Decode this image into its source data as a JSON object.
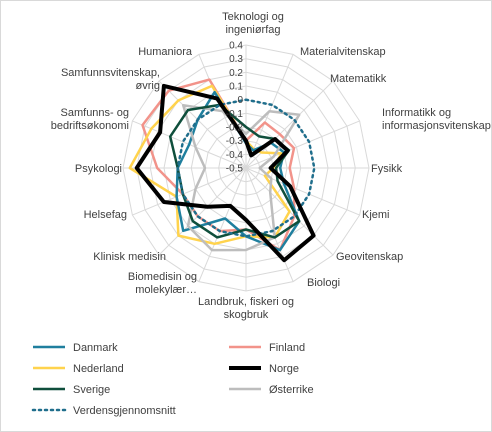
{
  "chart_data": {
    "type": "radar",
    "title": "",
    "categories": [
      "Teknologi og ingeniørfag",
      "Materialvitenskap",
      "Matematikk",
      "Informatikk og informasjonsvitenskap",
      "Fysikk",
      "Kjemi",
      "Geovitenskap",
      "Biologi",
      "Landbruk, fiskeri og skogbruk",
      "Biomedisin og molekylær…",
      "Klinisk medisin",
      "Helsefag",
      "Psykologi",
      "Samfunns- og bedriftsøkonomi",
      "Samfunnsvitenskap, øvrig",
      "Humaniora"
    ],
    "ticks": [
      "-0.5",
      "-0.4",
      "-0.3",
      "-0.2",
      "-0.1",
      "0",
      "0.1",
      "0.2",
      "0.3",
      "0.4"
    ],
    "rlim": [
      -0.5,
      0.4
    ],
    "grid": true,
    "legend_position": "bottom",
    "series": [
      {
        "name": "Danmark",
        "color": "#1f7f9e",
        "width": 2.5,
        "dash": "",
        "values": [
          -0.32,
          -0.36,
          -0.24,
          -0.2,
          -0.25,
          -0.2,
          0.05,
          0.15,
          0.0,
          -0.1,
          0.15,
          0.05,
          0.0,
          -0.05,
          0.0,
          0.1
        ]
      },
      {
        "name": "Finland",
        "color": "#f2938a",
        "width": 2.5,
        "dash": "",
        "values": [
          -0.3,
          -0.14,
          -0.15,
          -0.12,
          -0.18,
          -0.12,
          0.0,
          0.15,
          -0.05,
          0.0,
          0.0,
          0.0,
          0.15,
          0.32,
          0.3,
          0.2
        ]
      },
      {
        "name": "Nederland",
        "color": "#ffd34d",
        "width": 2.5,
        "dash": "",
        "values": [
          -0.3,
          -0.35,
          -0.34,
          -0.22,
          -0.3,
          -0.35,
          -0.05,
          0.05,
          0.0,
          0.1,
          0.2,
          0.05,
          0.35,
          0.25,
          0.2,
          0.15
        ]
      },
      {
        "name": "Norge",
        "color": "#000000",
        "width": 4,
        "dash": "",
        "values": [
          -0.3,
          -0.4,
          -0.2,
          -0.17,
          -0.32,
          -0.15,
          0.2,
          0.23,
          -0.12,
          -0.2,
          -0.1,
          0.15,
          0.3,
          0.18,
          0.35,
          0.05
        ]
      },
      {
        "name": "Sverige",
        "color": "#0f4f3c",
        "width": 2.5,
        "dash": "",
        "values": [
          -0.2,
          -0.25,
          -0.2,
          -0.16,
          -0.28,
          -0.25,
          0.05,
          0.05,
          -0.05,
          0.05,
          0.05,
          0.0,
          0.0,
          0.1,
          0.1,
          0.0
        ]
      },
      {
        "name": "Østerrike",
        "color": "#bdbdbd",
        "width": 2.5,
        "dash": "",
        "values": [
          -0.25,
          -0.05,
          0.05,
          -0.28,
          -0.4,
          -0.3,
          -0.25,
          0.05,
          0.1,
          0.15,
          0.1,
          -0.1,
          -0.2,
          -0.1,
          0.15,
          -0.05
        ]
      },
      {
        "name": "Verdensgjennomsnitt",
        "color": "#1f6e8c",
        "width": 2.5,
        "dash": "2,4",
        "values": [
          0,
          0,
          0,
          0,
          0,
          0,
          0,
          0,
          0,
          0,
          0,
          0,
          0,
          0,
          0,
          0
        ]
      }
    ]
  }
}
